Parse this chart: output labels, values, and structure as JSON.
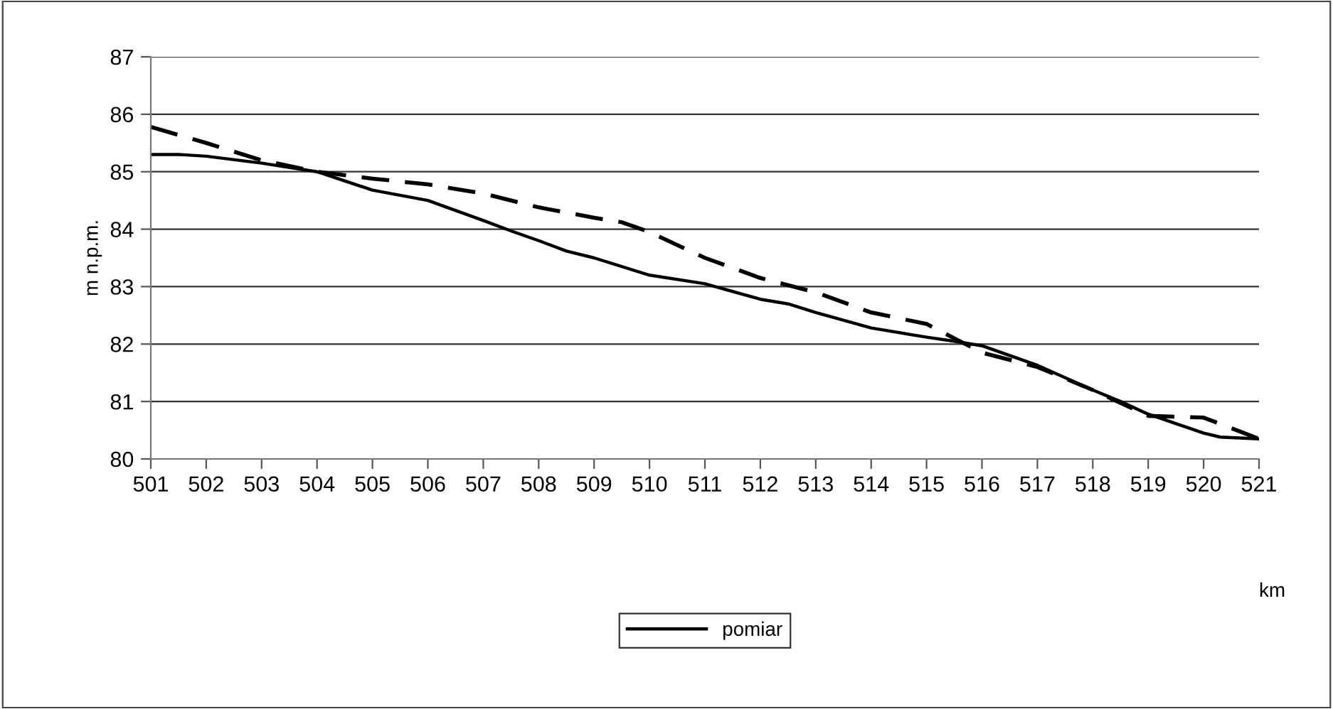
{
  "chart_data": {
    "type": "line",
    "xlabel": "km",
    "ylabel": "m n.p.m.",
    "xlim": [
      501,
      521
    ],
    "xticks": [
      501,
      502,
      503,
      504,
      505,
      506,
      507,
      508,
      509,
      510,
      511,
      512,
      513,
      514,
      515,
      516,
      517,
      518,
      519,
      520,
      521
    ],
    "ylim": [
      80,
      87
    ],
    "yticks": [
      80,
      81,
      82,
      83,
      84,
      85,
      86,
      87
    ],
    "grid": "y",
    "legend": "bottom",
    "series": [
      {
        "name": "pomiar",
        "color": "#000000",
        "line_style": "solid",
        "x": [
          501,
          501.5,
          502,
          503,
          504,
          505,
          506,
          507,
          507.5,
          508,
          508.5,
          509,
          510,
          511,
          512,
          512.5,
          513,
          514,
          515,
          515.5,
          516,
          516.5,
          517,
          518,
          518.5,
          519,
          520,
          520.3,
          521
        ],
        "values": [
          85.3,
          85.3,
          85.27,
          85.15,
          85.0,
          84.68,
          84.5,
          84.15,
          83.97,
          83.8,
          83.62,
          83.5,
          83.2,
          83.05,
          82.78,
          82.7,
          82.55,
          82.28,
          82.12,
          82.05,
          81.97,
          81.8,
          81.63,
          81.2,
          81.0,
          80.78,
          80.45,
          80.38,
          80.35
        ]
      },
      {
        "color": "#000000",
        "line_style": "dashed",
        "x": [
          501,
          502,
          503,
          504,
          505,
          506,
          507,
          508,
          509,
          509.5,
          510,
          511,
          512,
          513,
          514,
          515,
          516,
          517,
          518,
          519,
          520,
          521
        ],
        "values": [
          85.78,
          85.5,
          85.2,
          85.0,
          84.88,
          84.78,
          84.62,
          84.38,
          84.2,
          84.12,
          83.95,
          83.5,
          83.15,
          82.9,
          82.55,
          82.35,
          81.85,
          81.6,
          81.2,
          80.75,
          80.72,
          80.35
        ]
      }
    ]
  }
}
